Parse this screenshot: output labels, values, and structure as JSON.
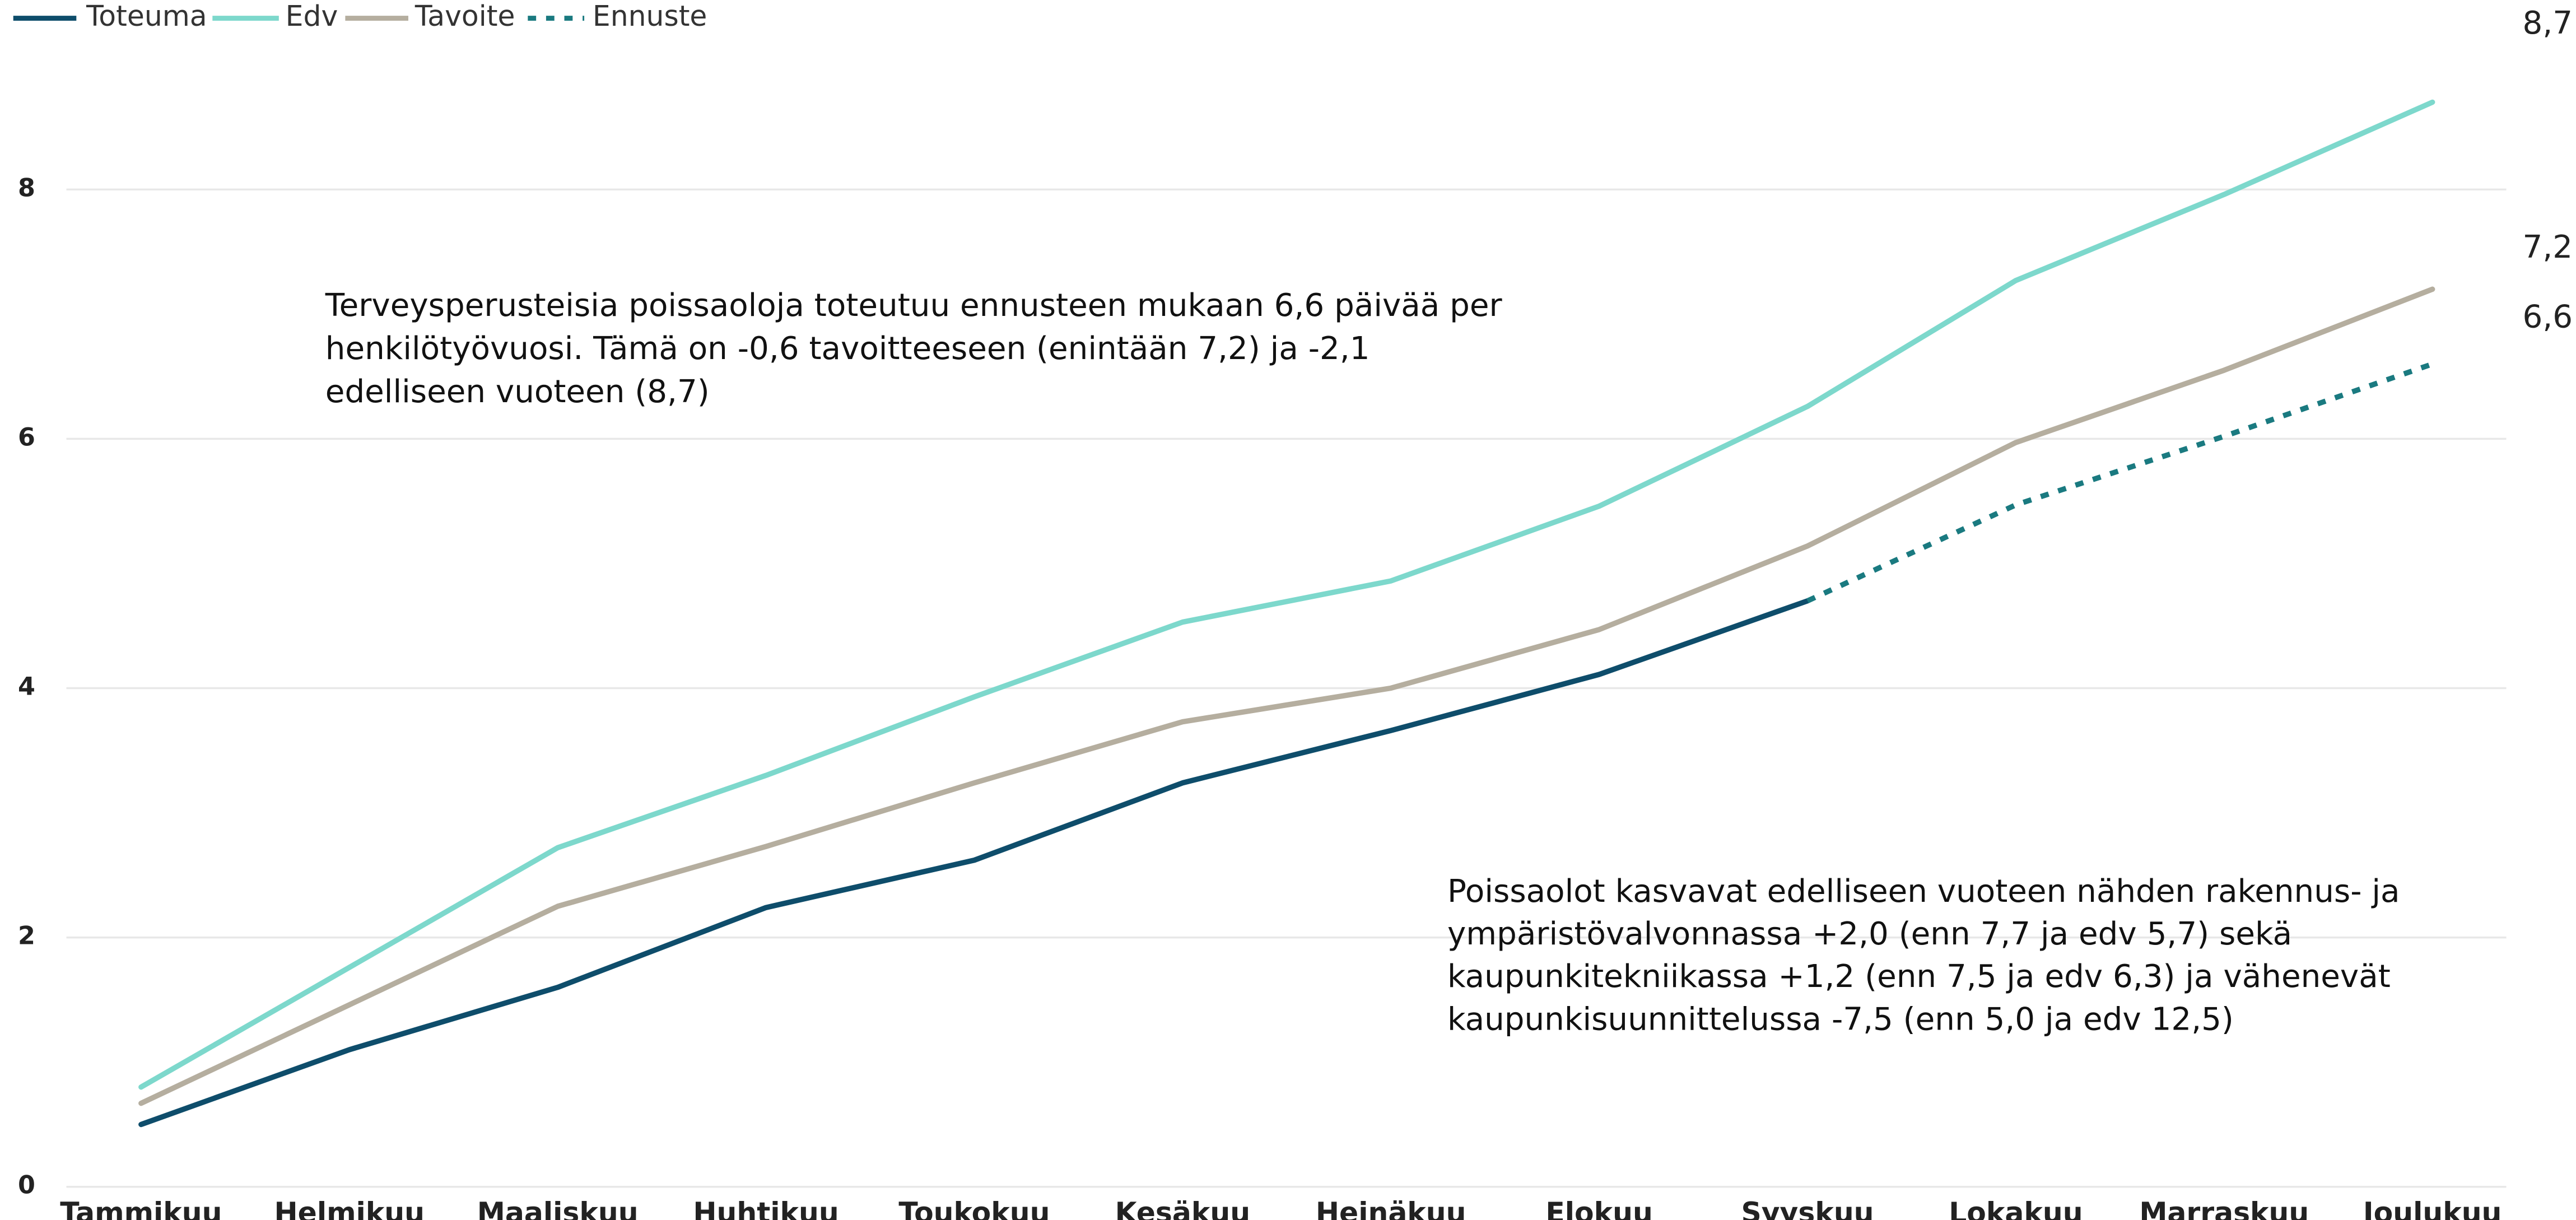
{
  "chart_data": {
    "type": "line",
    "categories": [
      "Tammikuu",
      "Helmikuu",
      "Maaliskuu",
      "Huhtikuu",
      "Toukokuu",
      "Kesäkuu",
      "Heinäkuu",
      "Elokuu",
      "Syyskuu",
      "Lokakuu",
      "Marraskuu",
      "Joulukuu"
    ],
    "series": [
      {
        "name": "Toteuma",
        "color": "#0e4d6b",
        "dashed": false,
        "values": [
          0.5,
          1.1,
          1.6,
          2.24,
          2.62,
          3.24,
          3.66,
          4.11,
          4.7,
          null,
          null,
          null
        ]
      },
      {
        "name": "Edv",
        "color": "#7dd8cc",
        "dashed": false,
        "values": [
          0.8,
          1.76,
          2.72,
          3.3,
          3.93,
          4.53,
          4.86,
          5.46,
          6.26,
          7.27,
          7.96,
          8.7
        ],
        "value_labels": [
          null,
          null,
          null,
          null,
          null,
          null,
          null,
          null,
          null,
          null,
          null,
          "8,7"
        ]
      },
      {
        "name": "Tavoite",
        "color": "#b5ae9f",
        "dashed": false,
        "values": [
          0.67,
          1.46,
          2.25,
          2.73,
          3.24,
          3.73,
          4.0,
          4.47,
          5.14,
          5.97,
          6.55,
          7.2
        ],
        "value_labels": [
          null,
          null,
          null,
          null,
          null,
          null,
          null,
          null,
          null,
          null,
          null,
          "7,2"
        ]
      },
      {
        "name": "Ennuste",
        "color": "#1a7a80",
        "label_color": "#0e4d6b",
        "dashed": true,
        "values": [
          null,
          null,
          null,
          null,
          null,
          null,
          null,
          null,
          4.7,
          5.47,
          6.02,
          6.6
        ],
        "value_labels": [
          null,
          null,
          null,
          null,
          null,
          null,
          null,
          null,
          null,
          null,
          null,
          "6,6"
        ]
      }
    ],
    "ylim": [
      0,
      9.4
    ],
    "yticks": [
      0,
      2,
      4,
      6,
      8
    ],
    "grid": true,
    "legend": "top-left",
    "annotations": [
      [
        "Terveysperusteisia poissaoloja toteutuu ennusteen mukaan 6,6 päivää per",
        "henkilötyövuosi. Tämä on -0,6 tavoitteeseen (enintään 7,2) ja -2,1",
        "edelliseen vuoteen (8,7)"
      ],
      [
        "Poissaolot kasvavat edelliseen vuoteen nähden rakennus- ja",
        "ympäristövalvonnassa +2,0 (enn 7,7 ja edv 5,7) sekä",
        "kaupunkitekniikassa +1,2 (enn 7,5 ja edv 6,3) ja vähenevät",
        "kaupunkisuunnittelussa -7,5 (enn 5,0 ja edv 12,5)"
      ]
    ]
  }
}
